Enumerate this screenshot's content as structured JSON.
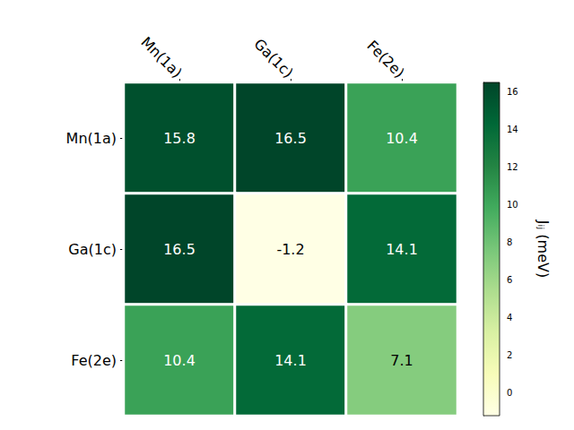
{
  "chart_data": {
    "type": "heatmap",
    "x_categories": [
      "Mn(1a)",
      "Ga(1c)",
      "Fe(2e)"
    ],
    "y_categories": [
      "Mn(1a)",
      "Ga(1c)",
      "Fe(2e)"
    ],
    "values": [
      [
        15.8,
        16.5,
        10.4
      ],
      [
        16.5,
        -1.2,
        14.1
      ],
      [
        10.4,
        14.1,
        7.1
      ]
    ],
    "data_labels": true,
    "colorbar": {
      "label": "Jᵢⱼ (meV)",
      "range": [
        -1.2,
        16.5
      ],
      "ticks": [
        0,
        2,
        4,
        6,
        8,
        10,
        12,
        14,
        16
      ]
    }
  }
}
